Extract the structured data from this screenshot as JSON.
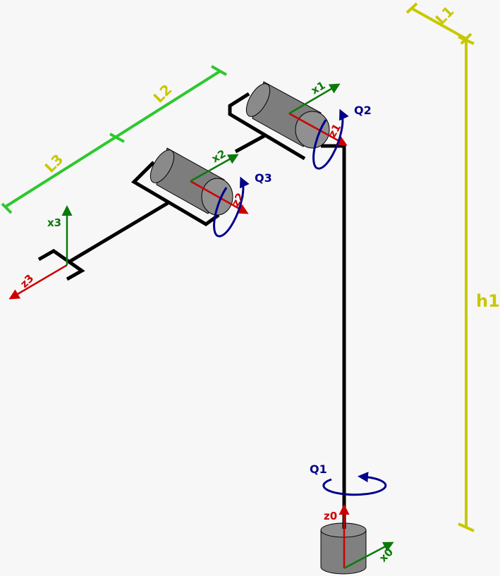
{
  "colors": {
    "background": "#f7f7f7",
    "link": "#000000",
    "joint_body": "#808080",
    "z_axis": "#cc0000",
    "x_axis": "#0a7a0a",
    "rotation": "#00008b",
    "dim_yellow": "#c8c800",
    "dim_green": "#2ec82e"
  },
  "labels": {
    "h1": "h1",
    "L1": "L1",
    "L2": "L2",
    "L3": "L3",
    "Q1": "Q1",
    "Q2": "Q2",
    "Q3": "Q3",
    "z0": "z0",
    "x0": "x0",
    "z1": "z1",
    "x1": "x1",
    "z2": "z2",
    "x2": "x2",
    "z3": "z3",
    "x3": "x3"
  }
}
